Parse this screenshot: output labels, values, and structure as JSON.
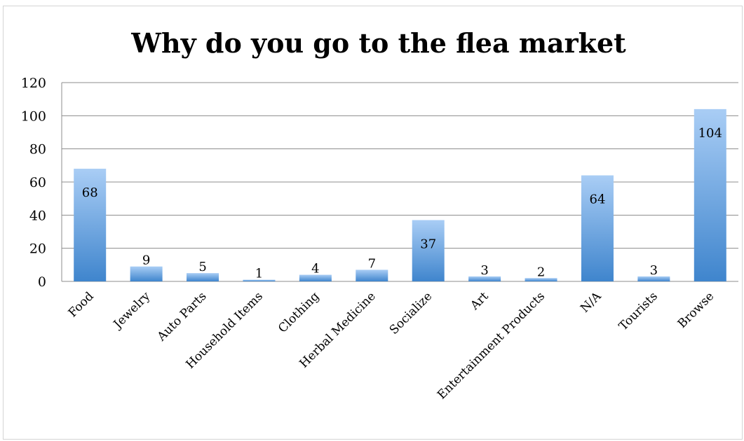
{
  "chart_data": {
    "type": "bar",
    "title": "Why do you go to the flea market",
    "categories": [
      "Food",
      "Jewelry",
      "Auto Parts",
      "Household Items",
      "Clothing",
      "Herbal Medicine",
      "Socialize",
      "Art",
      "Entertainment Products",
      "N/A",
      "Tourists",
      "Browse"
    ],
    "values": [
      68,
      9,
      5,
      1,
      4,
      7,
      37,
      3,
      2,
      64,
      3,
      104
    ],
    "ylim": [
      0,
      120
    ],
    "yticks": [
      0,
      20,
      40,
      60,
      80,
      100,
      120
    ],
    "grid": true,
    "legend": "none",
    "colors": {
      "bar_top": "#a9cdf5",
      "bar_bottom": "#3f85cd",
      "grid": "#8c8c8c"
    }
  }
}
